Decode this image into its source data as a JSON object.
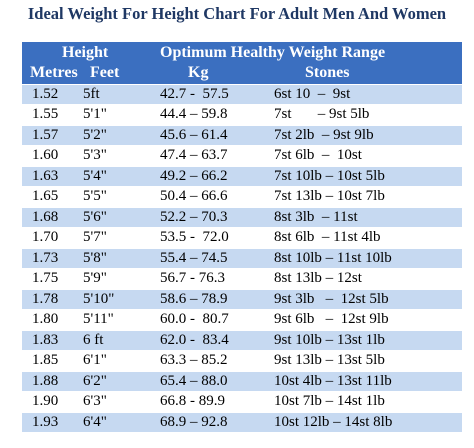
{
  "title": "Ideal Weight For Height Chart For Adult Men And Women",
  "table": {
    "header": [
      [
        "Height",
        "Optimum Healthy Weight Range"
      ],
      [
        "Metres",
        "Feet",
        "Kg",
        "Stones"
      ]
    ],
    "rows": [
      [
        "1.52",
        "5ft",
        "42.7 -  57.5",
        "6st 10  –  9st"
      ],
      [
        "1.55",
        "5'1\"",
        "44.4 – 59.8",
        "7st       – 9st 5lb"
      ],
      [
        "1.57",
        "5'2\"",
        "45.6 – 61.4",
        "7st 2lb  – 9st 9lb"
      ],
      [
        "1.60",
        "5'3\"",
        "47.4 – 63.7",
        "7st 6lb  –  10st"
      ],
      [
        "1.63",
        "5'4\"",
        "49.2 – 66.2",
        "7st 10lb – 10st 5lb"
      ],
      [
        "1.65",
        "5'5\"",
        "50.4 – 66.6",
        "7st 13lb – 10st 7lb"
      ],
      [
        "1.68",
        "5'6\"",
        "52.2 – 70.3",
        "8st 3lb  – 11st"
      ],
      [
        "1.70",
        "5'7\"",
        "53.5 -  72.0",
        "8st 6lb  – 11st 4lb"
      ],
      [
        "1.73",
        "5'8\"",
        "55.4 – 74.5",
        "8st 10lb – 11st 10lb"
      ],
      [
        "1.75",
        "5'9\"",
        "56.7 - 76.3",
        "8st 13lb – 12st"
      ],
      [
        "1.78",
        "5'10\"",
        "58.6 – 78.9",
        "9st 3lb   –  12st 5lb"
      ],
      [
        "1.80",
        "5'11\"",
        "60.0 -  80.7",
        "9st 6lb   –  12st 9lb"
      ],
      [
        "1.83",
        "6 ft",
        "62.0 -  83.4",
        "9st 10lb – 13st 1lb"
      ],
      [
        "1.85",
        "6'1\"",
        "63.3 – 85.2",
        "9st 13lb – 13st 5lb"
      ],
      [
        "1.88",
        "6'2\"",
        "65.4 – 88.0",
        "10st 4lb – 13st 11lb"
      ],
      [
        "1.90",
        "6'3\"",
        "66.8 - 89.9",
        "10st 7lb – 14st 1lb"
      ],
      [
        "1.93",
        "6'4\"",
        "68.9 – 92.8",
        "10st 12lb – 14st 8lb"
      ]
    ]
  }
}
